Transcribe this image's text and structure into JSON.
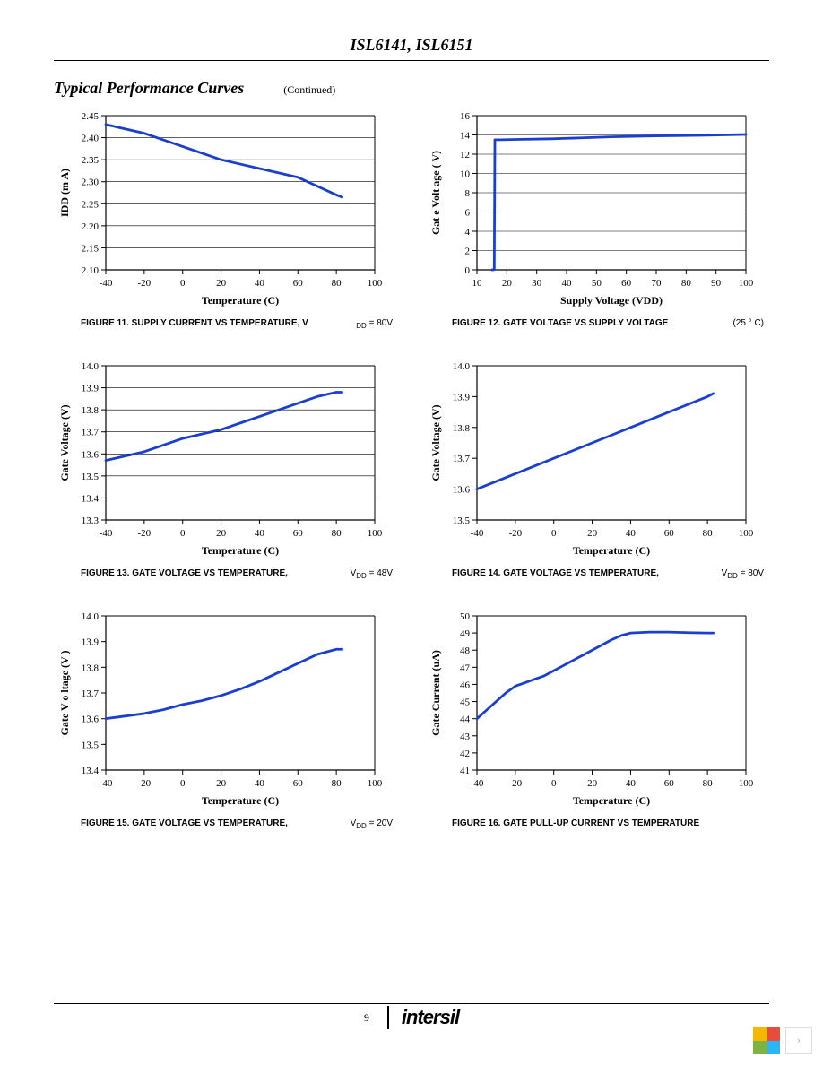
{
  "header_title": "ISL6141, ISL6151",
  "section_title": "Typical Performance Curves",
  "continued_label": "(Continued)",
  "page_number": "9",
  "brand": "intersil",
  "line_color": "#1a3fcf",
  "line_width": 2.8,
  "grid_color": "#000000",
  "grid_width": 0.6,
  "axis_color": "#000000",
  "background_color": "#ffffff",
  "tick_fontsize": 11,
  "label_fontsize": 12,
  "caption_fontsize": 10,
  "charts": [
    {
      "id": "fig11",
      "caption": "FIGURE 11. SUPPLY CURRENT VS TEMPERATURE, V",
      "caption_note_html": "<span class='cap-sub'>DD</span> = 80V",
      "ylabel": "IDD (m  A)",
      "xlabel": "Temperature (C)",
      "xlim": [
        -40,
        100
      ],
      "ylim": [
        2.1,
        2.45
      ],
      "xtick_start": -40,
      "xtick_step": 20,
      "ytick_start": 2.1,
      "ytick_step": 0.05,
      "y_decimals": 2,
      "horiz_grid": true,
      "data": [
        [
          -40,
          2.43
        ],
        [
          -30,
          2.42
        ],
        [
          -20,
          2.41
        ],
        [
          -10,
          2.395
        ],
        [
          0,
          2.38
        ],
        [
          10,
          2.365
        ],
        [
          20,
          2.35
        ],
        [
          30,
          2.34
        ],
        [
          40,
          2.33
        ],
        [
          50,
          2.32
        ],
        [
          60,
          2.31
        ],
        [
          70,
          2.29
        ],
        [
          80,
          2.27
        ],
        [
          83,
          2.265
        ]
      ]
    },
    {
      "id": "fig12",
      "caption": "FIGURE 12. GATE VOLTAGE VS SUPPLY VOLTAGE",
      "caption_note_html": "(25 ° C)",
      "ylabel": "Gat e Volt  age (  V)",
      "xlabel": "Supply Voltage (VDD)",
      "xlim": [
        10,
        100
      ],
      "ylim": [
        0,
        16
      ],
      "xtick_start": 10,
      "xtick_step": 10,
      "ytick_start": 0,
      "ytick_step": 2,
      "y_decimals": 0,
      "horiz_grid": true,
      "data": [
        [
          15,
          0
        ],
        [
          15.5,
          0
        ],
        [
          15.8,
          0.1
        ],
        [
          16,
          13.5
        ],
        [
          18,
          13.5
        ],
        [
          25,
          13.55
        ],
        [
          35,
          13.6
        ],
        [
          45,
          13.7
        ],
        [
          55,
          13.8
        ],
        [
          70,
          13.9
        ],
        [
          85,
          13.95
        ],
        [
          100,
          14.05
        ]
      ]
    },
    {
      "id": "fig13",
      "caption": "FIGURE 13. GATE VOLTAGE VS TEMPERATURE,",
      "caption_note_html": "V<span class='cap-sub'>DD</span> = 48V",
      "ylabel": "Gate Voltage (V)",
      "xlabel": "Temperature (C)",
      "xlim": [
        -40,
        100
      ],
      "ylim": [
        13.3,
        14
      ],
      "xtick_start": -40,
      "xtick_step": 20,
      "ytick_start": 13.3,
      "ytick_step": 0.1,
      "y_decimals": 1,
      "horiz_grid": true,
      "data": [
        [
          -40,
          13.57
        ],
        [
          -30,
          13.59
        ],
        [
          -20,
          13.61
        ],
        [
          -10,
          13.64
        ],
        [
          0,
          13.67
        ],
        [
          10,
          13.69
        ],
        [
          20,
          13.71
        ],
        [
          30,
          13.74
        ],
        [
          40,
          13.77
        ],
        [
          50,
          13.8
        ],
        [
          60,
          13.83
        ],
        [
          70,
          13.86
        ],
        [
          80,
          13.88
        ],
        [
          83,
          13.88
        ]
      ]
    },
    {
      "id": "fig14",
      "caption": "FIGURE 14. GATE VOLTAGE VS TEMPERATURE,",
      "caption_note_html": "V<span class='cap-sub'>DD</span> = 80V",
      "ylabel": "Gate Voltage (V)",
      "xlabel": "Temperature (C)",
      "xlim": [
        -40,
        100
      ],
      "ylim": [
        13.5,
        14
      ],
      "xtick_start": -40,
      "xtick_step": 20,
      "ytick_start": 13.5,
      "ytick_step": 0.1,
      "y_decimals": 1,
      "horiz_grid": false,
      "data": [
        [
          -40,
          13.6
        ],
        [
          -20,
          13.65
        ],
        [
          0,
          13.7
        ],
        [
          20,
          13.75
        ],
        [
          40,
          13.8
        ],
        [
          60,
          13.85
        ],
        [
          80,
          13.9
        ],
        [
          83,
          13.91
        ]
      ]
    },
    {
      "id": "fig15",
      "caption": "FIGURE 15. GATE VOLTAGE VS TEMPERATURE,",
      "caption_note_html": "V<span class='cap-sub'>DD</span> = 20V",
      "ylabel": "Gate V  o ltage (V  )",
      "xlabel": "Temperature (C)",
      "xlim": [
        -40,
        100
      ],
      "ylim": [
        13.4,
        14
      ],
      "xtick_start": -40,
      "xtick_step": 20,
      "ytick_start": 13.4,
      "ytick_step": 0.1,
      "y_decimals": 1,
      "horiz_grid": false,
      "data": [
        [
          -40,
          13.6
        ],
        [
          -30,
          13.61
        ],
        [
          -20,
          13.62
        ],
        [
          -10,
          13.635
        ],
        [
          0,
          13.655
        ],
        [
          10,
          13.67
        ],
        [
          20,
          13.69
        ],
        [
          30,
          13.715
        ],
        [
          40,
          13.745
        ],
        [
          50,
          13.78
        ],
        [
          60,
          13.815
        ],
        [
          70,
          13.85
        ],
        [
          80,
          13.87
        ],
        [
          83,
          13.87
        ]
      ]
    },
    {
      "id": "fig16",
      "caption": "FIGURE 16. GATE PULL-UP CURRENT VS TEMPERATURE",
      "caption_note_html": "",
      "ylabel": "Gate Current (uA)",
      "xlabel": "Temperature (C)",
      "xlim": [
        -40,
        100
      ],
      "ylim": [
        41,
        50
      ],
      "xtick_start": -40,
      "xtick_step": 20,
      "ytick_start": 41,
      "ytick_step": 1,
      "y_decimals": 0,
      "horiz_grid": false,
      "data": [
        [
          -40,
          44
        ],
        [
          -35,
          44.5
        ],
        [
          -30,
          45
        ],
        [
          -25,
          45.5
        ],
        [
          -20,
          45.9
        ],
        [
          -15,
          46.1
        ],
        [
          -10,
          46.3
        ],
        [
          -5,
          46.5
        ],
        [
          0,
          46.8
        ],
        [
          5,
          47.1
        ],
        [
          10,
          47.4
        ],
        [
          15,
          47.7
        ],
        [
          20,
          48
        ],
        [
          25,
          48.3
        ],
        [
          30,
          48.6
        ],
        [
          35,
          48.85
        ],
        [
          40,
          49
        ],
        [
          50,
          49.05
        ],
        [
          60,
          49.05
        ],
        [
          70,
          49.02
        ],
        [
          80,
          49
        ],
        [
          83,
          49
        ]
      ]
    }
  ]
}
